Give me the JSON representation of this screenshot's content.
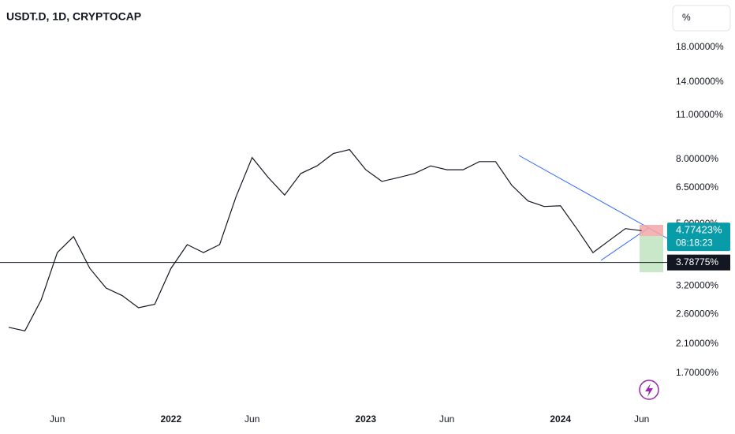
{
  "chart_data": {
    "type": "line",
    "title": "USDT.D, 1D, CRYPTOCAP",
    "unit_button": "%",
    "log_scale": true,
    "color": "#131722",
    "categories": [
      null,
      null,
      null,
      "Jun",
      null,
      null,
      null,
      null,
      null,
      null,
      "2022",
      null,
      null,
      null,
      null,
      "Jun",
      null,
      null,
      null,
      null,
      null,
      null,
      "2023",
      null,
      null,
      null,
      null,
      "Jun",
      null,
      null,
      null,
      null,
      null,
      null,
      "2024",
      null,
      null,
      null,
      null,
      "Jun"
    ],
    "values": [
      2.37,
      2.31,
      2.89,
      4.07,
      4.57,
      3.63,
      3.15,
      2.98,
      2.73,
      2.8,
      3.63,
      4.31,
      4.07,
      4.31,
      6.08,
      8.09,
      7.0,
      6.17,
      7.21,
      7.62,
      8.33,
      8.57,
      7.41,
      6.81,
      7.0,
      7.21,
      7.62,
      7.41,
      7.41,
      7.86,
      7.86,
      6.62,
      5.91,
      5.68,
      5.71,
      4.84,
      4.07,
      4.44,
      4.84,
      4.77
    ],
    "ylim": [
      1.3,
      25.3
    ],
    "yticks": [
      {
        "value": 18,
        "label": "18.00000%"
      },
      {
        "value": 14,
        "label": "14.00000%"
      },
      {
        "value": 11,
        "label": "11.00000%"
      },
      {
        "value": 8,
        "label": "8.00000%"
      },
      {
        "value": 6.5,
        "label": "6.50000%"
      },
      {
        "value": 5,
        "label": "5.00000%"
      },
      {
        "value": 3.2,
        "label": "3.20000%"
      },
      {
        "value": 2.6,
        "label": "2.60000%"
      },
      {
        "value": 2.1,
        "label": "2.10000%"
      },
      {
        "value": 1.7,
        "label": "1.70000%"
      }
    ],
    "last_price": {
      "value": 4.77423,
      "label": "4.77423%",
      "countdown": "08:18:23",
      "color": "#089ba8"
    },
    "price_line": {
      "value": 3.78775,
      "label": "3.78775%"
    }
  }
}
